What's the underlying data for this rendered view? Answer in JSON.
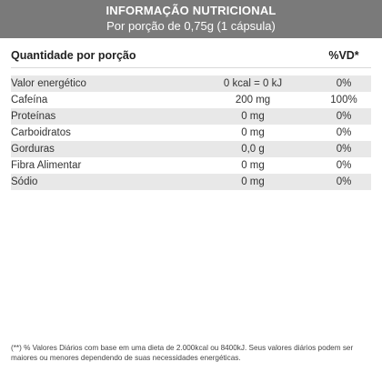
{
  "header": {
    "title": "INFORMAÇÃO NUTRICIONAL",
    "subtitle": "Por porção de 0,75g (1 cápsula)"
  },
  "table": {
    "head_label": "Quantidade por porção",
    "head_vd": "%VD*",
    "rows": [
      {
        "label": "Valor energético",
        "amount": "0 kcal = 0 kJ",
        "vd": "0%"
      },
      {
        "label": "Cafeína",
        "amount": "200 mg",
        "vd": "100%"
      },
      {
        "label": "Proteínas",
        "amount": "0 mg",
        "vd": "0%"
      },
      {
        "label": "Carboidratos",
        "amount": "0 mg",
        "vd": "0%"
      },
      {
        "label": "Gorduras",
        "amount": "0,0 g",
        "vd": "0%"
      },
      {
        "label": "Fibra Alimentar",
        "amount": "0 mg",
        "vd": "0%"
      },
      {
        "label": "Sódio",
        "amount": "0 mg",
        "vd": "0%"
      }
    ]
  },
  "footnote": "(**) % Valores Diários com base em uma dieta de 2.000kcal ou 8400kJ. Seus valores diários podem ser maiores ou menores dependendo de suas necessidades energéticas."
}
